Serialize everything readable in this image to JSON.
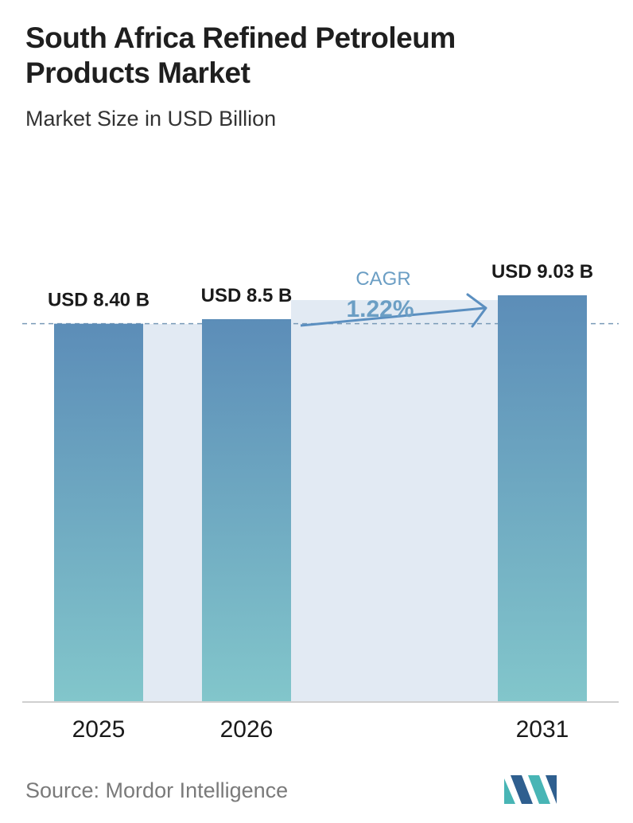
{
  "title": "South Africa Refined Petroleum Products Market",
  "subtitle": "Market Size in USD Billion",
  "source": "Source:  Mordor Intelligence",
  "colors": {
    "bar_top": "#5c8db8",
    "bar_bottom": "#82c6cb",
    "band": "#e2eaf3",
    "dashed_line": "#7a9bb8",
    "cagr_text": "#6b9ec4",
    "cagr_arrow": "#5b8fc0",
    "baseline": "#cfcfcf",
    "logo_dark": "#2f5f8f",
    "logo_teal": "#48b5b5"
  },
  "chart_data": {
    "type": "bar",
    "categories": [
      "2025",
      "2026",
      "2031"
    ],
    "values": [
      8.4,
      8.5,
      9.03
    ],
    "value_labels": [
      "USD 8.40 B",
      "USD 8.5 B",
      "USD 9.03 B"
    ],
    "title": "South Africa Refined Petroleum Products Market",
    "subtitle": "Market Size in USD Billion",
    "annotation": {
      "label": "CAGR",
      "value": "1.22%"
    },
    "grid": false
  }
}
